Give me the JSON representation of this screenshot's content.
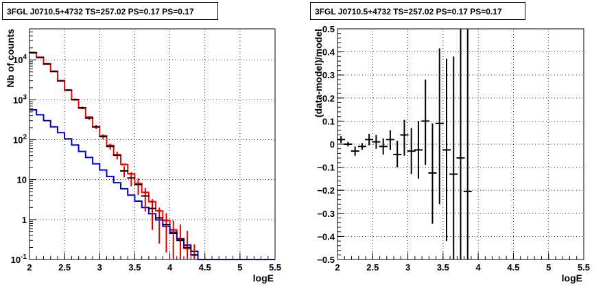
{
  "chart_data": [
    {
      "type": "line",
      "title": "3FGL J0710.5+4732 TS=257.02 PS=0.17 PS=0.17",
      "xlabel": "logE",
      "ylabel": "Nb of counts",
      "xlim": [
        2,
        5.5
      ],
      "ylim": [
        0.1,
        60000
      ],
      "yscale": "log",
      "grid": true,
      "x_ticks": [
        "2",
        "2.5",
        "3",
        "3.5",
        "4",
        "4.5",
        "5",
        "5.5"
      ],
      "y_ticks": [
        {
          "v": 0.1,
          "label": "10^-1"
        },
        {
          "v": 1,
          "label": "1"
        },
        {
          "v": 10,
          "label": "10"
        },
        {
          "v": 100,
          "label": "10^2"
        },
        {
          "v": 1000,
          "label": "10^3"
        },
        {
          "v": 10000,
          "label": "10^4"
        }
      ],
      "series": [
        {
          "color": "#ff0000",
          "style": "histogram",
          "bin_edges": [
            2.0,
            2.1,
            2.2,
            2.3,
            2.4,
            2.5,
            2.6,
            2.7,
            2.8,
            2.9,
            3.0,
            3.1,
            3.2,
            3.3,
            3.4,
            3.5,
            3.6,
            3.7,
            3.8,
            3.9,
            4.0,
            4.1,
            4.2,
            4.3,
            4.4,
            4.5,
            4.6,
            4.7,
            4.8,
            4.9,
            5.0,
            5.1,
            5.2,
            5.3,
            5.4,
            5.5
          ],
          "values": [
            15000,
            11500,
            8000,
            5200,
            3000,
            1750,
            1000,
            620,
            370,
            210,
            125,
            72,
            42,
            24,
            14,
            8,
            4.8,
            2.8,
            1.65,
            0.95,
            0.55,
            0.32,
            0.19,
            0.13,
            0.1,
            0.1,
            0.1,
            0.1,
            0.1,
            0.1,
            0.1,
            0.1,
            0.1,
            0.1,
            0.1
          ]
        },
        {
          "color": "#0000cc",
          "style": "histogram",
          "bin_edges": [
            2.0,
            2.1,
            2.2,
            2.3,
            2.4,
            2.5,
            2.6,
            2.7,
            2.8,
            2.9,
            3.0,
            3.1,
            3.2,
            3.3,
            3.4,
            3.5,
            3.6,
            3.7,
            3.8,
            3.9,
            4.0,
            4.1,
            4.2,
            4.3,
            4.4,
            4.5,
            4.6,
            4.7,
            4.8,
            4.9,
            5.0,
            5.1,
            5.2,
            5.3,
            5.4,
            5.5
          ],
          "values": [
            560,
            420,
            300,
            210,
            150,
            105,
            74,
            51,
            36,
            25,
            17.5,
            12,
            8.4,
            5.9,
            4.1,
            2.9,
            2.0,
            1.4,
            0.98,
            0.68,
            0.48,
            0.33,
            0.23,
            0.16,
            0.1,
            0.1,
            0.1,
            0.1,
            0.1,
            0.1,
            0.1,
            0.1,
            0.1,
            0.1,
            0.1
          ]
        },
        {
          "color": "#000000",
          "style": "points",
          "x": [
            2.05,
            2.15,
            2.25,
            2.35,
            2.45,
            2.55,
            2.65,
            2.75,
            2.85,
            2.95,
            3.05,
            3.15,
            3.25,
            3.35,
            3.45,
            3.55,
            3.65,
            3.75,
            3.85,
            3.95,
            4.05,
            4.15,
            4.25,
            4.35
          ],
          "y": [
            15300,
            11600,
            7800,
            5100,
            3000,
            1740,
            1020,
            630,
            350,
            210,
            120,
            68,
            41,
            16.5,
            11,
            7.5,
            3.9,
            1.9,
            1.1,
            0.75,
            0.45,
            0.3,
            0.2,
            0.13
          ],
          "y_low": [
            14900,
            11300,
            7600,
            4950,
            2890,
            1660,
            960,
            580,
            315,
            185,
            103,
            56,
            32,
            11.5,
            6.8,
            4.1,
            1.6,
            0.55,
            0.25,
            0.15,
            0.1,
            0.1,
            0.1,
            0.1
          ],
          "y_high": [
            15700,
            11900,
            8000,
            5250,
            3110,
            1820,
            1080,
            680,
            385,
            235,
            137,
            80,
            50,
            21.5,
            15.2,
            10.9,
            6.2,
            3.25,
            2.0,
            1.45,
            0.95,
            0.75,
            0.52,
            0.24
          ]
        }
      ]
    },
    {
      "type": "scatter",
      "title": "3FGL J0710.5+4732 TS=257.02 PS=0.17 PS=0.17",
      "xlabel": "logE",
      "ylabel": "(data-model)/model",
      "xlim": [
        2,
        5.5
      ],
      "ylim": [
        -0.5,
        0.5
      ],
      "grid": true,
      "x_ticks": [
        "2",
        "2.5",
        "3",
        "3.5",
        "4",
        "4.5",
        "5",
        "5.5"
      ],
      "y_ticks": [
        "-0.5",
        "-0.4",
        "-0.3",
        "-0.2",
        "-0.1",
        "0",
        "0.1",
        "0.2",
        "0.3",
        "0.4",
        "0.5"
      ],
      "series": [
        {
          "color": "#000000",
          "x": [
            2.05,
            2.15,
            2.25,
            2.35,
            2.45,
            2.55,
            2.65,
            2.75,
            2.85,
            2.95,
            3.05,
            3.15,
            3.25,
            3.35,
            3.45,
            3.55,
            3.65,
            3.75,
            3.85
          ],
          "y": [
            0.02,
            0.0,
            -0.03,
            -0.01,
            0.02,
            0.01,
            -0.01,
            0.02,
            -0.045,
            0.04,
            -0.03,
            -0.025,
            0.1,
            -0.125,
            0.09,
            -0.025,
            -0.13,
            -0.06,
            -0.205
          ],
          "y_low": [
            0.005,
            -0.01,
            -0.05,
            -0.025,
            -0.005,
            -0.02,
            -0.045,
            -0.025,
            -0.1,
            -0.05,
            -0.13,
            -0.15,
            -0.09,
            -0.345,
            -0.26,
            -0.42,
            -0.6,
            -0.6,
            -0.6
          ],
          "y_high": [
            0.035,
            0.01,
            -0.01,
            0.005,
            0.045,
            0.04,
            0.025,
            0.06,
            0.015,
            0.105,
            0.07,
            0.1,
            0.28,
            0.09,
            0.415,
            0.37,
            0.38,
            0.6,
            0.6
          ]
        }
      ]
    }
  ]
}
